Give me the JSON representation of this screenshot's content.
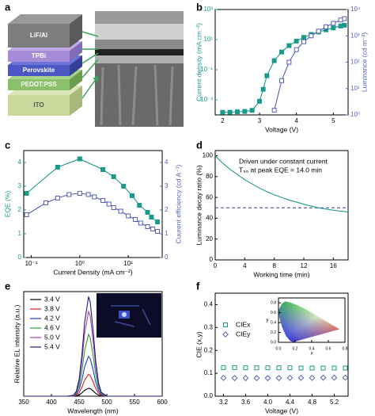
{
  "diagram": {
    "panel": "a",
    "layers": [
      "LiF/Al",
      "TPBi",
      "Perovskite",
      "PEDOT:PSS",
      "ITO"
    ]
  },
  "chart_data": [
    {
      "panel": "b",
      "type": "line",
      "xlabel": "Voltage (V)",
      "ylabel": "Current density (mA cm⁻²)",
      "y2label": "Luminance (cd m⁻²)",
      "xlim": [
        1.8,
        5.4
      ],
      "xticks": [
        2,
        3,
        4,
        5
      ],
      "yscale": "log",
      "ylim": [
        0.0001,
        1000
      ],
      "yticks": [
        {
          "value": 0.001,
          "label": "10⁻³"
        },
        {
          "value": 0.1,
          "label": "10⁻¹"
        },
        {
          "value": 10,
          "label": "10¹"
        },
        {
          "value": 1000,
          "label": "10³"
        }
      ],
      "y2scale": "log",
      "y2lim": [
        1,
        10000
      ],
      "y2ticks": [
        {
          "value": 1,
          "label": "10⁰"
        },
        {
          "value": 10,
          "label": "10¹"
        },
        {
          "value": 100,
          "label": "10²"
        },
        {
          "value": 1000,
          "label": "10³"
        },
        {
          "value": 10000,
          "label": "10⁴"
        }
      ],
      "series": [
        {
          "color": "#1a9a8a",
          "marker": "square",
          "x": [
            2.0,
            2.2,
            2.4,
            2.6,
            2.8,
            3.0,
            3.1,
            3.2,
            3.4,
            3.6,
            3.8,
            4.0,
            4.2,
            4.4,
            4.6,
            4.8,
            5.0,
            5.2,
            5.3
          ],
          "values": [
            0.00015,
            0.00015,
            0.00016,
            0.00017,
            0.0002,
            0.0008,
            0.005,
            0.04,
            0.4,
            1.5,
            4,
            8,
            14,
            22,
            32,
            45,
            60,
            80,
            90
          ]
        },
        {
          "color": "#5560b0",
          "marker": "square-open",
          "axis": "y2",
          "x": [
            3.4,
            3.6,
            3.8,
            4.0,
            4.2,
            4.4,
            4.6,
            4.8,
            5.0,
            5.2,
            5.3
          ],
          "values": [
            1.5,
            20,
            100,
            300,
            600,
            1000,
            1500,
            2200,
            3000,
            4000,
            4500
          ]
        }
      ]
    },
    {
      "panel": "c",
      "type": "line",
      "xlabel": "Current Density (mA cm⁻²)",
      "ylabel": "EQE (%)",
      "y2label": "Cuurent efficiency (cd A⁻¹)",
      "xscale": "log",
      "xlim": [
        0.07,
        50
      ],
      "xticks": [
        {
          "value": 0.1,
          "label": "10⁻¹"
        },
        {
          "value": 1,
          "label": "10⁰"
        },
        {
          "value": 10,
          "label": "10¹"
        }
      ],
      "ylim": [
        0,
        4.5
      ],
      "yticks": [
        0,
        1,
        2,
        3,
        4
      ],
      "y2lim": [
        0,
        4.5
      ],
      "y2ticks": [
        0,
        1,
        2,
        3,
        4
      ],
      "series": [
        {
          "color": "#1a9a8a",
          "marker": "square",
          "x": [
            0.08,
            0.35,
            1,
            3,
            5,
            8,
            12,
            17,
            25,
            30,
            40
          ],
          "values": [
            2.7,
            3.8,
            4.15,
            3.7,
            3.4,
            3.0,
            2.6,
            2.2,
            1.9,
            1.7,
            1.5
          ]
        },
        {
          "color": "#5560b0",
          "marker": "square-open",
          "axis": "y2",
          "x": [
            0.08,
            0.2,
            0.35,
            0.6,
            1,
            1.5,
            2,
            3,
            4,
            5,
            7,
            10,
            14,
            18,
            25,
            32,
            40
          ],
          "values": [
            1.8,
            2.3,
            2.5,
            2.65,
            2.7,
            2.65,
            2.55,
            2.4,
            2.25,
            2.1,
            1.95,
            1.75,
            1.6,
            1.45,
            1.3,
            1.2,
            1.1
          ]
        }
      ]
    },
    {
      "panel": "d",
      "type": "line",
      "xlabel": "Working time (min)",
      "ylabel": "Luminance decay ratio (%)",
      "annotations": [
        "Driven under constant current",
        "T₅₀ at peak EQE = 14.0 min"
      ],
      "xlim": [
        0,
        18
      ],
      "xticks": [
        0,
        4,
        8,
        12,
        16
      ],
      "ylim": [
        0,
        105
      ],
      "yticks": [
        0,
        20,
        40,
        60,
        80,
        100
      ],
      "x": [
        0,
        1,
        2,
        3,
        4,
        5,
        6,
        7,
        8,
        9,
        10,
        11,
        12,
        13,
        14,
        15,
        16,
        17,
        18
      ],
      "values": [
        100,
        93,
        87,
        82,
        77,
        73,
        69,
        65.5,
        62.5,
        60,
        57.5,
        55.5,
        53.5,
        51.7,
        50,
        48.8,
        47.7,
        46.8,
        46
      ],
      "color": "#1a9a8a",
      "hline": 50,
      "hline_color": "#3040a0"
    },
    {
      "panel": "e",
      "type": "line",
      "xlabel": "Wavelength (nm)",
      "ylabel": "Relative EL intensity (a.u.)",
      "legend": "upper left",
      "xlim": [
        350,
        600
      ],
      "xticks": [
        350,
        400,
        450,
        500,
        550,
        600
      ],
      "ylim": [
        0,
        105
      ],
      "x": [
        350,
        400,
        420,
        430,
        440,
        445,
        450,
        455,
        460,
        467,
        470,
        475,
        480,
        485,
        490,
        500,
        510,
        520,
        540,
        560,
        600
      ],
      "series": [
        {
          "name": "3.4 V",
          "color": "#000000",
          "values": [
            0,
            0,
            0,
            0,
            0.1,
            0.4,
            1.3,
            3.3,
            5.9,
            8,
            7.6,
            5.4,
            2.8,
            1.1,
            0.3,
            0,
            0,
            0,
            0,
            0,
            0
          ]
        },
        {
          "name": "3.8 V",
          "color": "#e41a1c",
          "values": [
            0,
            0,
            0,
            0,
            0.2,
            1.1,
            3.7,
            9,
            16.3,
            22,
            20.8,
            14.8,
            7.7,
            3,
            0.8,
            0,
            0,
            0,
            0,
            0,
            0
          ]
        },
        {
          "name": "4.2 V",
          "color": "#1f3fd0",
          "values": [
            0,
            0,
            0,
            0,
            0.4,
            2,
            6.7,
            16.4,
            29.6,
            40,
            37.8,
            27,
            14.1,
            5.4,
            1.5,
            0,
            0,
            0,
            0,
            0,
            0
          ]
        },
        {
          "name": "4.6 V",
          "color": "#2ca02c",
          "values": [
            0,
            0,
            0,
            0,
            0.7,
            3.1,
            10.4,
            25.4,
            45.8,
            62,
            58.7,
            41.8,
            21.8,
            8.4,
            2.4,
            0.1,
            0,
            0,
            0,
            0,
            0
          ]
        },
        {
          "name": "5.0 V",
          "color": "#b040b0",
          "values": [
            0,
            0,
            0,
            0,
            0.9,
            4.3,
            14.3,
            34.9,
            62.8,
            85,
            80.4,
            57.3,
            29.9,
            11.5,
            3.2,
            0.1,
            0,
            0,
            0,
            0,
            0
          ]
        },
        {
          "name": "5.4 V",
          "color": "#1a1a80",
          "values": [
            0,
            0,
            0,
            0,
            1.1,
            5,
            16.8,
            41,
            73.9,
            100,
            94.6,
            67.4,
            35.2,
            13.5,
            3.8,
            0.1,
            0,
            0,
            0,
            0,
            0
          ]
        }
      ]
    },
    {
      "panel": "f",
      "type": "scatter",
      "xlabel": "Voltage (V)",
      "ylabel": "CIE (x,y)",
      "legend": "upper left",
      "xlim": [
        3.05,
        5.45
      ],
      "xticks": [
        3.2,
        3.6,
        {
          "value": 4,
          "label": "4.0"
        },
        4.4,
        4.8,
        5.2
      ],
      "ylim": [
        0,
        0.45
      ],
      "yticks": [
        {
          "value": 0,
          "label": "0.0"
        },
        0.1,
        0.2,
        0.3,
        0.4
      ],
      "x": [
        3.2,
        3.4,
        3.6,
        3.8,
        4.0,
        4.2,
        4.4,
        4.6,
        4.8,
        5.0,
        5.2,
        5.4
      ],
      "series": [
        {
          "name": "CIEx",
          "color": "#1a9a8a",
          "marker": "square-open",
          "values": [
            0.125,
            0.125,
            0.124,
            0.124,
            0.124,
            0.124,
            0.124,
            0.123,
            0.123,
            0.123,
            0.123,
            0.123
          ]
        },
        {
          "name": "CIEy",
          "color": "#5560b0",
          "marker": "diamond-open",
          "values": [
            0.08,
            0.079,
            0.079,
            0.079,
            0.079,
            0.079,
            0.08,
            0.08,
            0.08,
            0.081,
            0.081,
            0.081
          ]
        }
      ],
      "inset": {
        "xlabel": "x",
        "ylabel": "y",
        "xlim": [
          0,
          0.8
        ],
        "ylim": [
          0,
          0.9
        ],
        "xticks": [
          {
            "value": 0,
            "label": "0.0"
          },
          0.2,
          0.4,
          0.6,
          0.8
        ],
        "yticks": [
          {
            "value": 0,
            "label": "0.0"
          },
          0.2,
          0.4,
          0.6,
          0.8
        ]
      }
    }
  ]
}
